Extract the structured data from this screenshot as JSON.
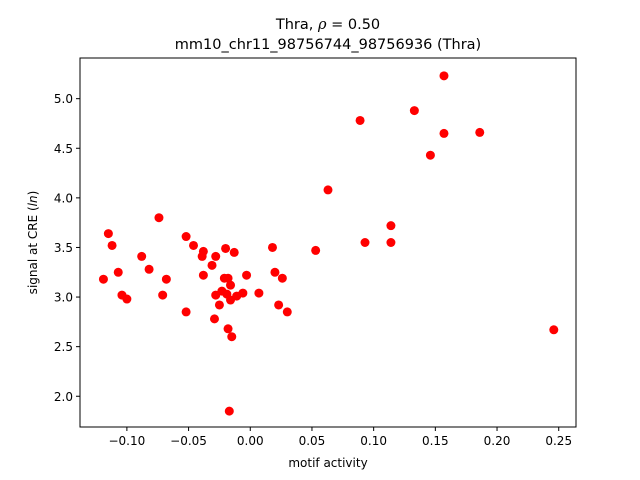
{
  "chart_data": {
    "type": "scatter",
    "title_prefix": "Thra, ",
    "title_rho_symbol": "ρ",
    "title_rho_value": " = 0.50",
    "subtitle": "mm10_chr11_98756744_98756936 (Thra)",
    "xlabel": "motif activity",
    "ylabel_prefix": "signal at CRE (",
    "ylabel_italic": "ln",
    "ylabel_suffix": ")",
    "xlim": [
      -0.138,
      0.264
    ],
    "ylim": [
      1.69,
      5.41
    ],
    "xticks": [
      -0.1,
      -0.05,
      0.0,
      0.05,
      0.1,
      0.15,
      0.2,
      0.25
    ],
    "xtick_labels": [
      "−0.10",
      "−0.05",
      "0.00",
      "0.05",
      "0.10",
      "0.15",
      "0.20",
      "0.25"
    ],
    "yticks": [
      2.0,
      2.5,
      3.0,
      3.5,
      4.0,
      4.5,
      5.0
    ],
    "ytick_labels": [
      "2.0",
      "2.5",
      "3.0",
      "3.5",
      "4.0",
      "4.5",
      "5.0"
    ],
    "grid": false,
    "legend": "none",
    "marker_color": "#ff0000",
    "points": [
      [
        -0.119,
        3.18
      ],
      [
        -0.115,
        3.64
      ],
      [
        -0.112,
        3.52
      ],
      [
        -0.107,
        3.25
      ],
      [
        -0.104,
        3.02
      ],
      [
        -0.1,
        2.98
      ],
      [
        -0.088,
        3.41
      ],
      [
        -0.082,
        3.28
      ],
      [
        -0.074,
        3.8
      ],
      [
        -0.071,
        3.02
      ],
      [
        -0.068,
        3.18
      ],
      [
        -0.052,
        3.61
      ],
      [
        -0.052,
        2.85
      ],
      [
        -0.046,
        3.52
      ],
      [
        -0.039,
        3.41
      ],
      [
        -0.038,
        3.46
      ],
      [
        -0.038,
        3.22
      ],
      [
        -0.031,
        3.32
      ],
      [
        -0.029,
        2.78
      ],
      [
        -0.028,
        3.41
      ],
      [
        -0.028,
        3.02
      ],
      [
        -0.025,
        2.92
      ],
      [
        -0.023,
        3.06
      ],
      [
        -0.021,
        3.19
      ],
      [
        -0.02,
        3.49
      ],
      [
        -0.019,
        3.03
      ],
      [
        -0.018,
        3.19
      ],
      [
        -0.018,
        2.68
      ],
      [
        -0.017,
        1.85
      ],
      [
        -0.016,
        2.97
      ],
      [
        -0.016,
        3.12
      ],
      [
        -0.015,
        2.6
      ],
      [
        -0.013,
        3.45
      ],
      [
        -0.011,
        3.01
      ],
      [
        -0.006,
        3.04
      ],
      [
        -0.003,
        3.22
      ],
      [
        0.007,
        3.04
      ],
      [
        0.018,
        3.5
      ],
      [
        0.02,
        3.25
      ],
      [
        0.023,
        2.92
      ],
      [
        0.026,
        3.19
      ],
      [
        0.03,
        2.85
      ],
      [
        0.053,
        3.47
      ],
      [
        0.063,
        4.08
      ],
      [
        0.089,
        4.78
      ],
      [
        0.093,
        3.55
      ],
      [
        0.114,
        3.72
      ],
      [
        0.114,
        3.55
      ],
      [
        0.133,
        4.88
      ],
      [
        0.146,
        4.43
      ],
      [
        0.157,
        5.23
      ],
      [
        0.157,
        4.65
      ],
      [
        0.186,
        4.66
      ],
      [
        0.246,
        2.67
      ]
    ]
  }
}
